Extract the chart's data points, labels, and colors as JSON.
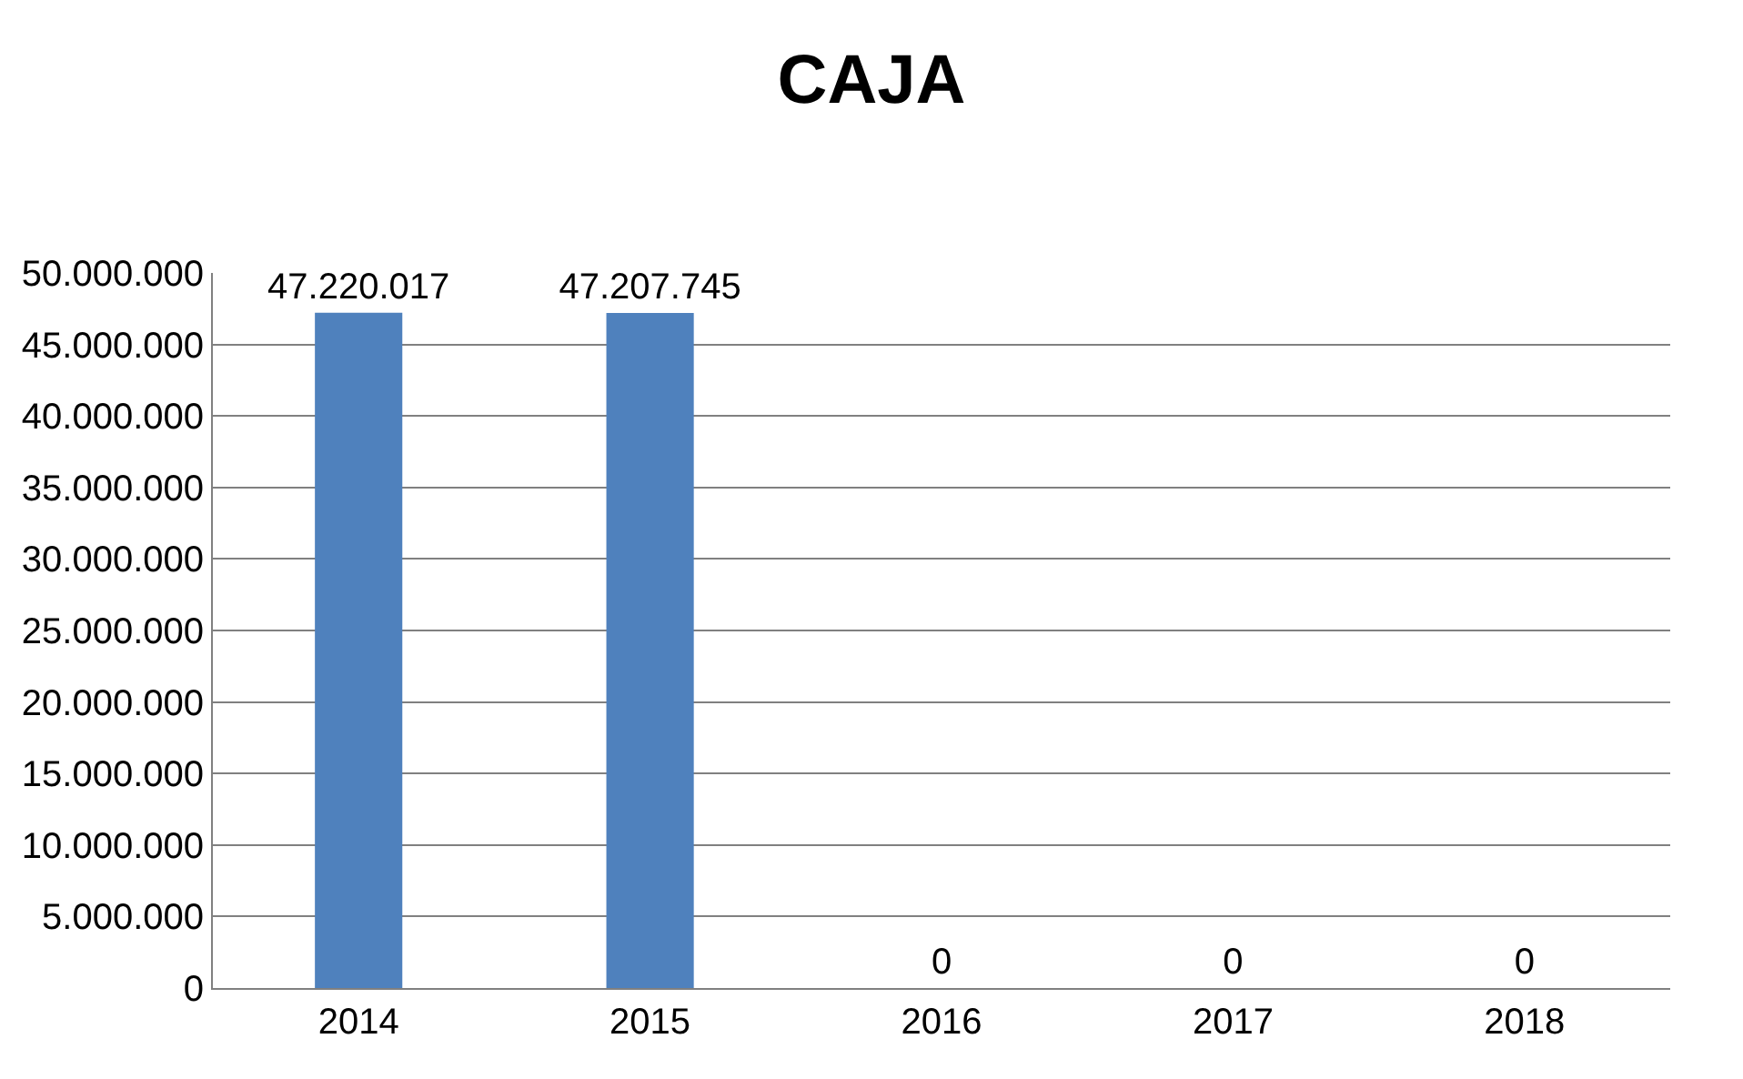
{
  "chart_data": {
    "type": "bar",
    "title": "CAJA",
    "categories": [
      "2014",
      "2015",
      "2016",
      "2017",
      "2018"
    ],
    "values": [
      47220017,
      47207745,
      0,
      0,
      0
    ],
    "value_labels": [
      "47.220.017",
      "47.207.745",
      "0",
      "0",
      "0"
    ],
    "color": "#4f81bd",
    "ylim": [
      0,
      50000000
    ],
    "yticks": [
      0,
      {
        "value": 5000000,
        "label": "5.000.000"
      },
      {
        "value": 10000000,
        "label": "10.000.000"
      },
      {
        "value": 15000000,
        "label": "15.000.000"
      },
      {
        "value": 20000000,
        "label": "20.000.000"
      },
      {
        "value": 25000000,
        "label": "25.000.000"
      },
      {
        "value": 30000000,
        "label": "30.000.000"
      },
      {
        "value": 35000000,
        "label": "35.000.000"
      },
      {
        "value": 40000000,
        "label": "40.000.000"
      },
      {
        "value": 45000000,
        "label": "45.000.000"
      },
      {
        "value": 50000000,
        "label": "50.000.000"
      }
    ],
    "grid": "y",
    "legend": false
  }
}
